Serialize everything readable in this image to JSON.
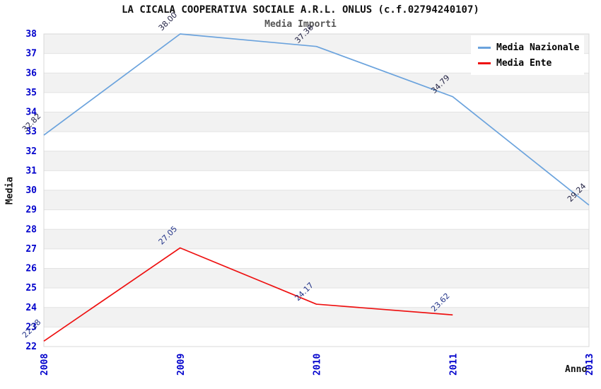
{
  "chart_data": {
    "type": "line",
    "title": "LA CICALA COOPERATIVA SOCIALE A.R.L. ONLUS (c.f.02794240107)",
    "subtitle": "Media Importi",
    "xlabel": "Anno",
    "ylabel": "Media",
    "categories": [
      "2008",
      "2009",
      "2010",
      "2011",
      "2013"
    ],
    "ylim": [
      22,
      38
    ],
    "y_tick_step": 1,
    "grid": "striped-horizontal-bands",
    "legend_position": "top-right-inside",
    "series": [
      {
        "name": "Media Nazionale",
        "color": "#6ba3dd",
        "label_color": "#222244",
        "values": [
          32.82,
          38.0,
          37.36,
          34.79,
          29.24
        ]
      },
      {
        "name": "Media Ente",
        "color": "#ee1111",
        "label_color": "#223388",
        "values": [
          22.28,
          27.05,
          24.17,
          23.62,
          null
        ]
      }
    ],
    "colors": {
      "axis_tick_label": "#0000cc",
      "band_fill": "#f2f2f2",
      "gridline": "#e2e2e2",
      "plot_border": "#d8d8d8",
      "title_text": "#111111",
      "subtitle_text": "#555555"
    }
  }
}
